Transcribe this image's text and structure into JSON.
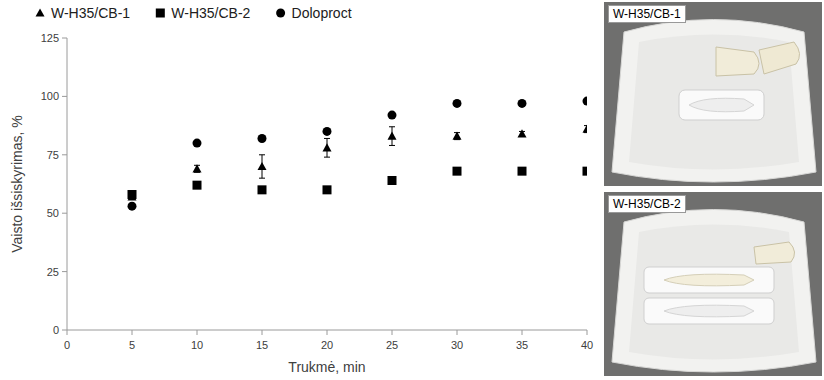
{
  "chart_data": {
    "type": "scatter",
    "x_label": "Trukmė, min",
    "y_label": "Vaisto išsiskyrimas, %",
    "x": [
      5,
      10,
      15,
      20,
      25,
      30,
      35,
      40
    ],
    "series": [
      {
        "name": "W-H35/CB-1",
        "color": "#000000",
        "marker": "triangle",
        "values": [
          57,
          69,
          70,
          78,
          83,
          83,
          84,
          86
        ],
        "errors": [
          1,
          1.5,
          5,
          4,
          4,
          1.5,
          1,
          1.5
        ]
      },
      {
        "name": "W-H35/CB-2",
        "color": "#000000",
        "marker": "square",
        "values": [
          58,
          62,
          60,
          60,
          64,
          68,
          68,
          68
        ]
      },
      {
        "name": "Doloproct",
        "color": "#000000",
        "marker": "circle",
        "values": [
          53,
          80,
          82,
          85,
          92,
          97,
          97,
          98
        ]
      }
    ],
    "xlim": [
      0,
      40
    ],
    "xticks": [
      0,
      5,
      10,
      15,
      20,
      25,
      30,
      35,
      40
    ],
    "ylim": [
      0,
      125
    ],
    "yticks": [
      0,
      25,
      50,
      75,
      100,
      125
    ],
    "grid": false,
    "legend": "top"
  },
  "panels": [
    {
      "label": "W-H35/CB-1"
    },
    {
      "label": "W-H35/CB-2"
    }
  ]
}
